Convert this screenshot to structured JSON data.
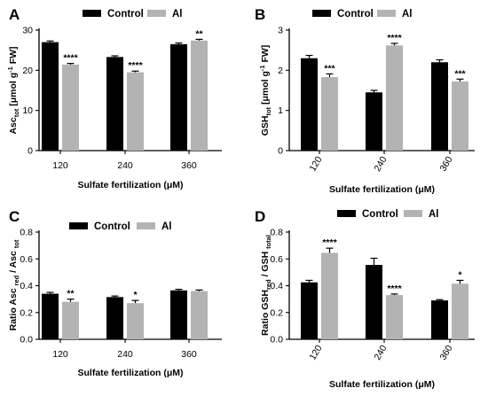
{
  "colors": {
    "control": "#000000",
    "al": "#b3b3b3"
  },
  "chart_data": [
    {
      "panel": "A",
      "type": "bar",
      "categories": [
        "120",
        "240",
        "360"
      ],
      "series": [
        {
          "name": "Control",
          "values": [
            27.0,
            23.3,
            26.5
          ],
          "errors": [
            0.3,
            0.3,
            0.3
          ]
        },
        {
          "name": "Al",
          "values": [
            21.4,
            19.5,
            27.4
          ],
          "errors": [
            0.3,
            0.3,
            0.3
          ]
        }
      ],
      "significance": [
        "****",
        "****",
        "**"
      ],
      "xlabel": "Sulfate fertilization  (μM)",
      "ylabel": {
        "base": "Asc",
        "sub": "tot",
        "mid": " [μmol g",
        "sup": "-1",
        "end": " FW]"
      },
      "ylim": [
        0,
        30
      ],
      "yticks": [
        "0",
        "10",
        "20",
        "30"
      ],
      "xtick_rotation": 0
    },
    {
      "panel": "B",
      "type": "bar",
      "categories": [
        "120",
        "240",
        "360"
      ],
      "series": [
        {
          "name": "Control",
          "values": [
            2.3,
            1.45,
            2.2
          ],
          "errors": [
            0.07,
            0.05,
            0.06
          ]
        },
        {
          "name": "Al",
          "values": [
            1.83,
            2.62,
            1.72
          ],
          "errors": [
            0.08,
            0.05,
            0.06
          ]
        }
      ],
      "significance": [
        "***",
        "****",
        "***"
      ],
      "xlabel": "Sulfate fertilization  (μM)",
      "ylabel": {
        "base": "GSH",
        "sub": "tot",
        "mid": " [μmol g",
        "sup": "-1",
        "end": " FW]"
      },
      "ylim": [
        0,
        3
      ],
      "yticks": [
        "0",
        "1",
        "2",
        "3"
      ],
      "xtick_rotation": -60
    },
    {
      "panel": "C",
      "type": "bar",
      "categories": [
        "120",
        "240",
        "360"
      ],
      "series": [
        {
          "name": "Control",
          "values": [
            0.34,
            0.315,
            0.365
          ],
          "errors": [
            0.01,
            0.008,
            0.008
          ]
        },
        {
          "name": "Al",
          "values": [
            0.28,
            0.27,
            0.36
          ],
          "errors": [
            0.02,
            0.02,
            0.008
          ]
        }
      ],
      "significance": [
        "**",
        "*",
        ""
      ],
      "xlabel": "Sulfate fertilization  (μM)",
      "ylabel": {
        "base": "Ratio Asc ",
        "sub": "red",
        "mid": " / Asc ",
        "sub2": "tot"
      },
      "ylim": [
        0,
        0.8
      ],
      "yticks": [
        "0.0",
        "0.2",
        "0.4",
        "0.6",
        "0.8"
      ],
      "xtick_rotation": 0
    },
    {
      "panel": "D",
      "type": "bar",
      "categories": [
        "120",
        "240",
        "360"
      ],
      "series": [
        {
          "name": "Control",
          "values": [
            0.425,
            0.555,
            0.29
          ],
          "errors": [
            0.015,
            0.05,
            0.006
          ]
        },
        {
          "name": "Al",
          "values": [
            0.645,
            0.33,
            0.415
          ],
          "errors": [
            0.035,
            0.008,
            0.025
          ]
        }
      ],
      "significance": [
        "****",
        "****",
        "*"
      ],
      "xlabel": "Sulfate fertilization  (μM)",
      "ylabel": {
        "base": "Ratio GSH",
        "sub": "red",
        "mid": " / GSH ",
        "sub2": "total"
      },
      "ylim": [
        0,
        0.8
      ],
      "yticks": [
        "0.0",
        "0.2",
        "0.4",
        "0.6",
        "0.8"
      ],
      "xtick_rotation": -60
    }
  ]
}
